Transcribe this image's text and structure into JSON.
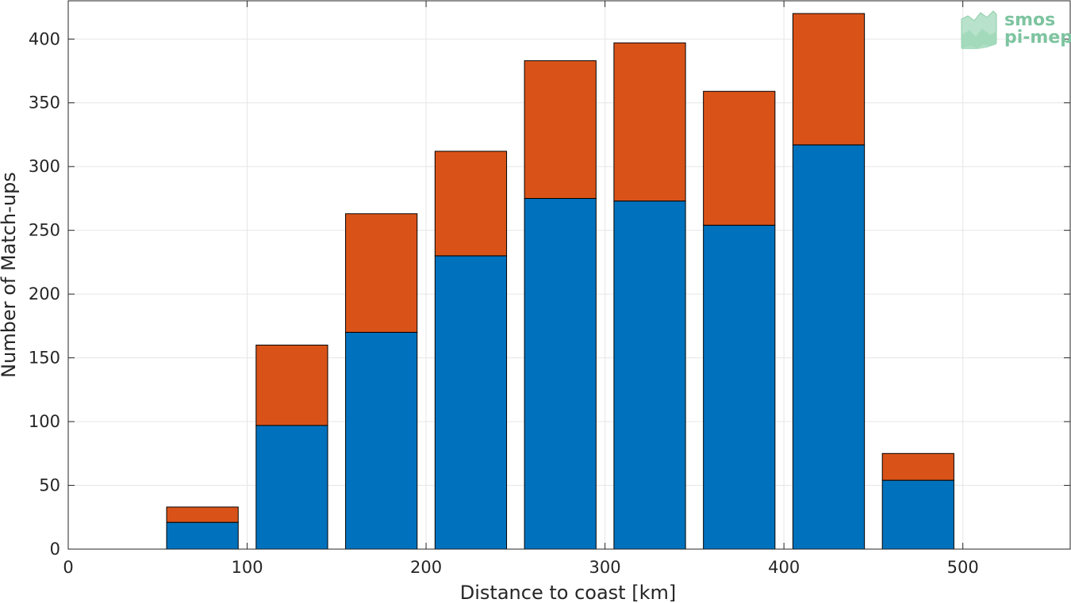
{
  "chart_data": {
    "type": "bar",
    "stacked": true,
    "x": [
      25,
      75,
      125,
      175,
      225,
      275,
      325,
      375,
      425,
      475,
      525
    ],
    "series": [
      {
        "color": "#0072BD",
        "values": [
          0,
          21,
          97,
          170,
          230,
          275,
          273,
          254,
          317,
          54,
          0
        ]
      },
      {
        "color": "#D95319",
        "values": [
          0,
          12,
          63,
          93,
          82,
          108,
          124,
          105,
          103,
          21,
          0
        ]
      }
    ],
    "xlabel": "Distance to coast [km]",
    "ylabel": "Number of Match-ups",
    "xlim": [
      0,
      560
    ],
    "ylim": [
      0,
      430
    ],
    "xticks": [
      0,
      100,
      200,
      300,
      400,
      500
    ],
    "yticks": [
      0,
      50,
      100,
      150,
      200,
      250,
      300,
      350,
      400
    ],
    "grid": true
  },
  "logo": {
    "line1": "smos",
    "line2": "pi-mep",
    "color": "#7dc4a0"
  }
}
